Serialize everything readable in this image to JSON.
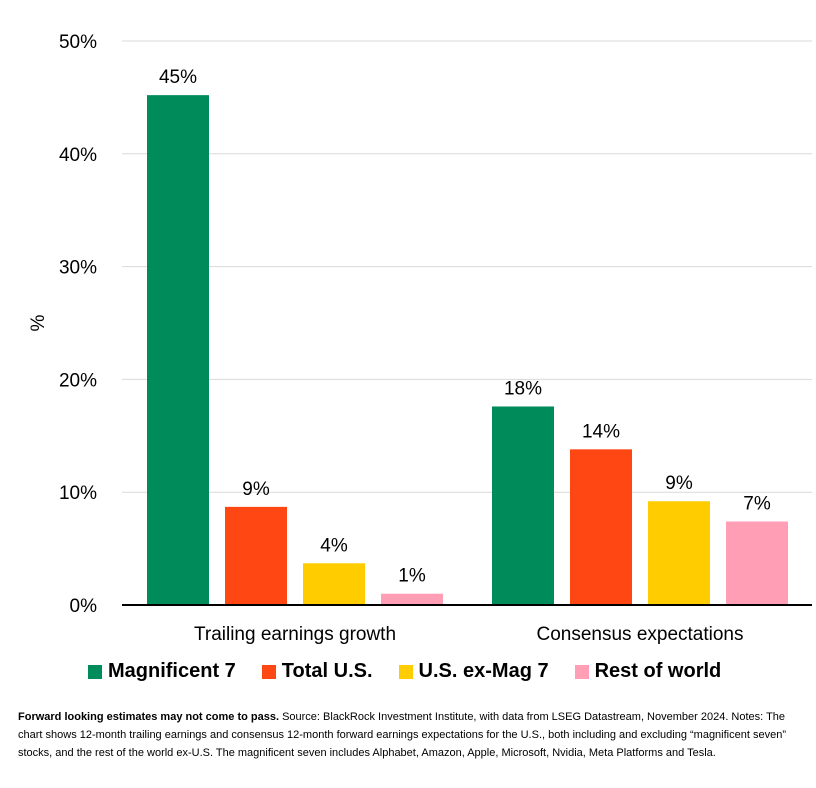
{
  "chart_data": {
    "type": "bar",
    "ylabel": "%",
    "ylim": [
      0,
      50
    ],
    "yticks": [
      "0%",
      "10%",
      "20%",
      "30%",
      "40%",
      "50%"
    ],
    "ytick_values": [
      0,
      10,
      20,
      30,
      40,
      50
    ],
    "categories": [
      "Trailing earnings growth",
      "Consensus expectations"
    ],
    "series": [
      {
        "name": "Magnificent 7",
        "color": "#008c5a",
        "values": [
          45.2,
          17.6
        ],
        "labels": [
          "45%",
          "18%"
        ]
      },
      {
        "name": "Total U.S.",
        "color": "#ff4713",
        "values": [
          8.7,
          13.8
        ],
        "labels": [
          "9%",
          "14%"
        ]
      },
      {
        "name": "U.S. ex-Mag 7",
        "color": "#ffcc00",
        "values": [
          3.7,
          9.2
        ],
        "labels": [
          "4%",
          "9%"
        ]
      },
      {
        "name": "Rest of world",
        "color": "#ff9eb5",
        "values": [
          1.0,
          7.4
        ],
        "labels": [
          "1%",
          "7%"
        ]
      }
    ],
    "grid": true,
    "legend": "bottom"
  },
  "footnote": {
    "bold": "Forward looking estimates may not come to pass.",
    "text": " Source: BlackRock Investment Institute, with data from LSEG Datastream, November 2024. Notes: The chart shows 12-month trailing earnings and consensus 12-month forward earnings expectations for the U.S., both including and excluding “magnificent seven” stocks, and the rest of the world ex-U.S. The magnificent seven includes Alphabet, Amazon, Apple, Microsoft, Nvidia, Meta Platforms and Tesla."
  }
}
